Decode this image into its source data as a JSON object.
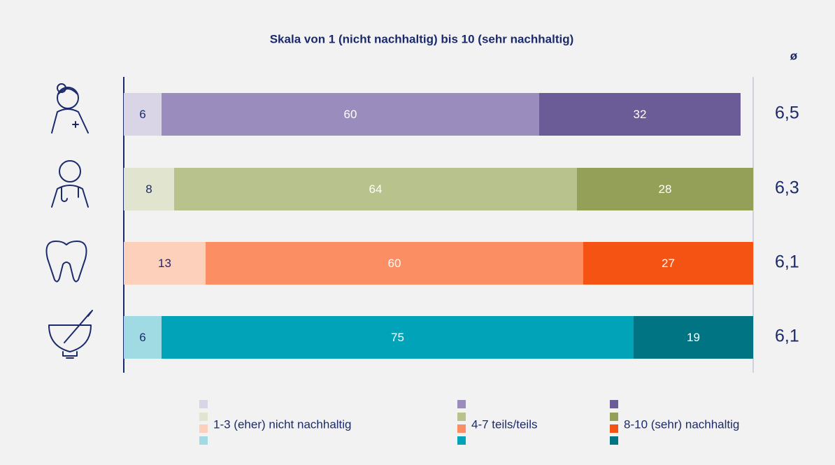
{
  "chart_data": {
    "type": "stacked-bar-horizontal",
    "title": "Skala von 1 (nicht nachhaltig) bis 10 (sehr nachhaltig)",
    "categories": [
      null,
      null,
      null,
      null
    ],
    "series": [
      {
        "name": "1-3 (eher) nicht nachhaltig",
        "colors": [
          "#d9d5e6",
          "#e1e5cf",
          "#fdd0bc",
          "#a0dbe4"
        ],
        "values": [
          6,
          8,
          13,
          6
        ]
      },
      {
        "name": "4-7 teils/teils",
        "colors": [
          "#9a8cbc",
          "#b8c28d",
          "#fb8e63",
          "#00a3b8"
        ],
        "values": [
          60,
          64,
          60,
          75
        ]
      },
      {
        "name": "8-10 (sehr) nachhaltig",
        "colors": [
          "#6b5b97",
          "#949f58",
          "#f55314",
          "#007483"
        ],
        "values": [
          32,
          28,
          27,
          19
        ]
      }
    ],
    "average_header": "ø",
    "averages": [
      6.5,
      6.3,
      6.1,
      6.1
    ],
    "average_labels": [
      "6,5",
      "6,3",
      "6,1",
      "6,1"
    ],
    "xlim": [
      0,
      100
    ]
  }
}
